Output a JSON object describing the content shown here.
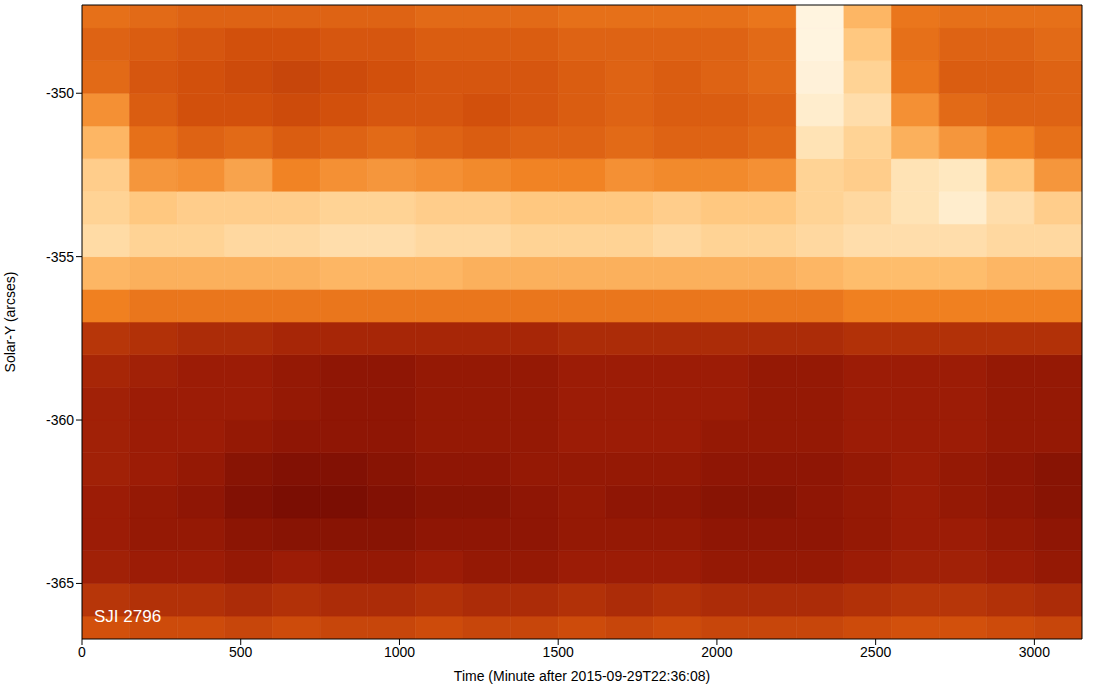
{
  "chart_data": {
    "type": "heatmap",
    "xlabel": "Time (Minute after 2015-09-29T22:36:08)",
    "ylabel": "Solar-Y (arcses)",
    "annotation": "SJI 2796",
    "xlim": [
      0,
      3150
    ],
    "ylim": [
      -366.7,
      -347.3
    ],
    "xticks": [
      0,
      500,
      1000,
      1500,
      2000,
      2500,
      3000
    ],
    "yticks": [
      -365,
      -360,
      -355,
      -350
    ],
    "zlim": [
      0,
      100
    ],
    "x_edges": [
      0,
      150,
      300,
      450,
      600,
      750,
      900,
      1050,
      1200,
      1350,
      1500,
      1650,
      1800,
      1950,
      2100,
      2250,
      2400,
      2550,
      2700,
      2850,
      3000,
      3150
    ],
    "y_edges": [
      -366.7,
      -366,
      -365,
      -364,
      -363,
      -362,
      -361,
      -360,
      -359,
      -358,
      -357,
      -356,
      -355,
      -354,
      -353,
      -352,
      -351,
      -350,
      -349,
      -348,
      -347.3
    ],
    "cells": [
      [
        40,
        38,
        38,
        36,
        38,
        36,
        36,
        38,
        36,
        36,
        38,
        36,
        38,
        36,
        36,
        36,
        38,
        40,
        40,
        38,
        36
      ],
      [
        30,
        28,
        28,
        26,
        28,
        26,
        26,
        28,
        26,
        26,
        28,
        26,
        28,
        26,
        26,
        26,
        28,
        30,
        30,
        28,
        26
      ],
      [
        22,
        20,
        20,
        18,
        20,
        18,
        18,
        20,
        18,
        18,
        20,
        20,
        20,
        18,
        18,
        18,
        20,
        22,
        22,
        20,
        18
      ],
      [
        20,
        18,
        18,
        15,
        14,
        14,
        14,
        16,
        16,
        16,
        18,
        18,
        18,
        16,
        16,
        16,
        18,
        20,
        20,
        18,
        16
      ],
      [
        20,
        18,
        16,
        12,
        10,
        10,
        12,
        14,
        14,
        16,
        18,
        16,
        16,
        14,
        14,
        16,
        18,
        20,
        18,
        16,
        14
      ],
      [
        22,
        20,
        18,
        14,
        12,
        12,
        14,
        16,
        16,
        18,
        18,
        18,
        18,
        16,
        16,
        16,
        18,
        20,
        18,
        16,
        14
      ],
      [
        22,
        20,
        20,
        18,
        16,
        16,
        16,
        18,
        18,
        18,
        20,
        20,
        20,
        18,
        18,
        18,
        20,
        20,
        20,
        18,
        18
      ],
      [
        22,
        20,
        20,
        20,
        18,
        16,
        16,
        18,
        18,
        18,
        20,
        20,
        20,
        20,
        18,
        18,
        20,
        20,
        20,
        18,
        18
      ],
      [
        24,
        22,
        20,
        20,
        18,
        16,
        16,
        18,
        18,
        18,
        20,
        20,
        20,
        20,
        18,
        18,
        20,
        20,
        20,
        18,
        18
      ],
      [
        30,
        28,
        26,
        26,
        24,
        24,
        24,
        24,
        24,
        24,
        26,
        26,
        26,
        26,
        26,
        26,
        28,
        28,
        28,
        28,
        28
      ],
      [
        55,
        52,
        52,
        52,
        52,
        52,
        52,
        52,
        52,
        52,
        52,
        52,
        52,
        52,
        52,
        52,
        55,
        55,
        55,
        55,
        55
      ],
      [
        72,
        70,
        70,
        70,
        70,
        72,
        72,
        72,
        70,
        70,
        70,
        70,
        70,
        70,
        70,
        72,
        74,
        74,
        74,
        72,
        72
      ],
      [
        85,
        82,
        82,
        84,
        84,
        86,
        86,
        84,
        84,
        82,
        82,
        82,
        84,
        82,
        82,
        84,
        86,
        86,
        86,
        84,
        84
      ],
      [
        82,
        78,
        80,
        80,
        80,
        82,
        82,
        80,
        80,
        78,
        78,
        78,
        80,
        78,
        78,
        82,
        84,
        88,
        92,
        86,
        80
      ],
      [
        80,
        62,
        60,
        66,
        56,
        60,
        62,
        60,
        58,
        56,
        56,
        60,
        58,
        58,
        60,
        82,
        80,
        88,
        90,
        78,
        62
      ],
      [
        72,
        50,
        46,
        48,
        44,
        46,
        48,
        46,
        44,
        46,
        46,
        48,
        46,
        46,
        48,
        88,
        82,
        70,
        62,
        56,
        50
      ],
      [
        60,
        44,
        40,
        40,
        38,
        40,
        42,
        42,
        40,
        42,
        44,
        46,
        44,
        44,
        46,
        92,
        86,
        60,
        48,
        46,
        46
      ],
      [
        48,
        42,
        40,
        38,
        36,
        38,
        40,
        42,
        42,
        42,
        44,
        46,
        44,
        46,
        48,
        94,
        82,
        52,
        44,
        44,
        46
      ],
      [
        46,
        44,
        42,
        40,
        40,
        42,
        42,
        44,
        44,
        44,
        46,
        46,
        46,
        46,
        48,
        95,
        78,
        50,
        46,
        46,
        48
      ],
      [
        50,
        48,
        46,
        46,
        46,
        46,
        46,
        48,
        48,
        48,
        50,
        50,
        50,
        50,
        52,
        95,
        72,
        52,
        50,
        50,
        50
      ]
    ]
  }
}
